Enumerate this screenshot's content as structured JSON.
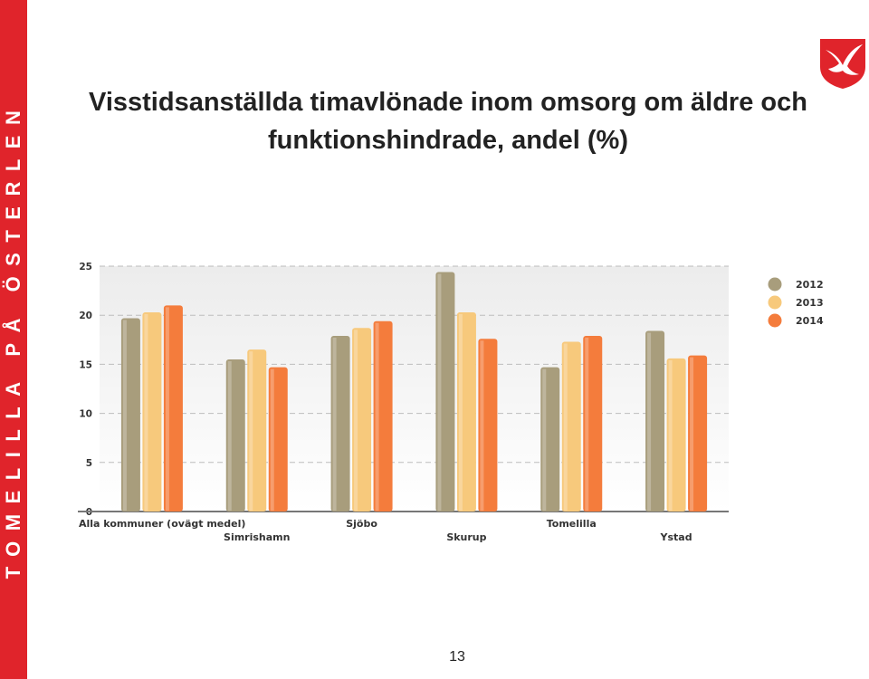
{
  "sidebar": {
    "text": "TOMELILLA PÅ ÖSTERLEN",
    "color": "#e0242b"
  },
  "logo": {
    "icon": "kite-bird-shield-icon"
  },
  "title": {
    "line1": "Visstidsanställda timavlönade inom omsorg om äldre och",
    "line2": "funktionshindrade, andel (%)"
  },
  "page_number": "13",
  "chart_data": {
    "type": "bar",
    "categories": [
      "Alla kommuner (ovägt medel)",
      "Simrishamn",
      "Sjöbo",
      "Skurup",
      "Tomelilla",
      "Ystad"
    ],
    "series": [
      {
        "name": "2012",
        "color": "#a89d7c",
        "values": [
          19.7,
          15.5,
          17.9,
          24.4,
          14.7,
          18.4
        ]
      },
      {
        "name": "2013",
        "color": "#f7c97c",
        "values": [
          20.3,
          16.5,
          18.7,
          20.3,
          17.3,
          15.6
        ]
      },
      {
        "name": "2014",
        "color": "#f47c3c",
        "values": [
          21.0,
          14.7,
          19.4,
          17.6,
          17.9,
          15.9
        ]
      }
    ],
    "yticks": [
      "0",
      "5",
      "10",
      "15",
      "20",
      "25"
    ],
    "ylim": [
      0,
      25
    ],
    "grid": true,
    "legend_position": "top-right",
    "title": "",
    "xlabel": "",
    "ylabel": ""
  }
}
